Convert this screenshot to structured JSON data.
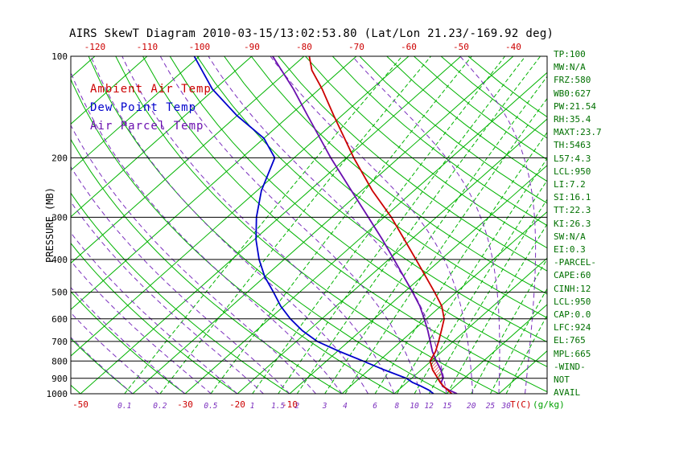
{
  "title": "AIRS SkewT Diagram 2010-03-15/13:02:53.80 (Lat/Lon 21.23/-169.92 deg)",
  "y_axis": {
    "label": "PRESSURE (MB)"
  },
  "legend": {
    "items": [
      {
        "label": "Ambient Air Temp",
        "color": "#cc0000"
      },
      {
        "label": "Dew Point Temp",
        "color": "#0000cc"
      },
      {
        "label": "Air Parcel Temp",
        "color": "#6a0faf"
      }
    ]
  },
  "stats_panel": {
    "color": "#007000",
    "lines": [
      "TP:100",
      "MW:N/A",
      "FRZ:580",
      "WB0:627",
      "PW:21.54",
      "RH:35.4",
      "MAXT:23.7",
      "TH:5463",
      "L57:4.3",
      "LCL:950",
      "LI:7.2",
      "SI:16.1",
      "TT:22.3",
      "KI:26.3",
      "SW:N/A",
      "EI:0.3",
      "-PARCEL-",
      "CAPE:60",
      "CINH:12",
      "LCL:950",
      "CAP:0.0",
      "LFC:924",
      "EL:765",
      "MPL:665",
      "-WIND-",
      "NOT",
      "AVAIL"
    ]
  },
  "chart_data": {
    "type": "line",
    "title": "AIRS SkewT Diagram 2010-03-15/13:02:53.80 (Lat/Lon 21.23/-169.92 deg)",
    "xlabel": "T(C)",
    "ylabel": "PRESSURE (MB)",
    "colors": {
      "grid_green": "#00b300",
      "moist_purple": "#7b2fbe",
      "label_red": "#cc0000",
      "pressure_black": "#000000",
      "mixing_unit_green": "#00a000"
    },
    "axes": {
      "pressure_range_mb": [
        100,
        1000
      ],
      "pressure_scale": "log",
      "pressure_ticks_mb": [
        100,
        200,
        300,
        400,
        500,
        600,
        700,
        800,
        900,
        1000
      ],
      "top_temp_labels_c": [
        -120,
        -110,
        -100,
        -90,
        -80,
        -70,
        -60,
        -50,
        -40
      ],
      "bottom_temp_labels_c": [
        -50,
        -30,
        -20,
        -10
      ],
      "mixing_ratio_labels_gkg": [
        0.1,
        0.2,
        0.5,
        1,
        1.5,
        2,
        3,
        4,
        6,
        8,
        10,
        12,
        15,
        20,
        25,
        30
      ],
      "temp_unit_label": "T(C)",
      "mixing_unit_label": "(g/kg)"
    },
    "background": {
      "isotherms_c": [
        -120,
        -110,
        -100,
        -90,
        -80,
        -70,
        -60,
        -50,
        -40,
        -30,
        -20,
        -10,
        0,
        10,
        20,
        30,
        40
      ],
      "dry_adiabats_theta_c": [
        -50,
        -40,
        -30,
        -20,
        -10,
        0,
        10,
        20,
        30,
        40,
        50,
        60,
        70,
        80,
        90,
        100,
        110,
        120,
        130,
        140,
        150,
        160
      ],
      "mixing_ratio_lines_gkg": [
        0.1,
        0.2,
        0.5,
        1,
        1.5,
        2,
        3,
        4,
        6,
        8,
        10,
        12,
        15,
        20,
        25,
        30
      ],
      "moist_adiabats_start_c": [
        -40,
        -35,
        -30,
        -25,
        -20,
        -15,
        -10,
        -5,
        0,
        5,
        10,
        15,
        20,
        25,
        30,
        35,
        40
      ]
    },
    "series": [
      {
        "name": "Ambient Air Temp",
        "color": "#cc0000",
        "points": [
          [
            1000,
            21.0
          ],
          [
            950,
            17.8
          ],
          [
            925,
            16.3
          ],
          [
            900,
            15.0
          ],
          [
            850,
            12.2
          ],
          [
            800,
            9.8
          ],
          [
            750,
            8.8
          ],
          [
            700,
            7.2
          ],
          [
            650,
            5.4
          ],
          [
            600,
            3.4
          ],
          [
            550,
            0.2
          ],
          [
            500,
            -4.2
          ],
          [
            450,
            -9.2
          ],
          [
            400,
            -14.8
          ],
          [
            350,
            -21.2
          ],
          [
            300,
            -28.6
          ],
          [
            250,
            -38.0
          ],
          [
            200,
            -48.6
          ],
          [
            150,
            -61.5
          ],
          [
            125,
            -69.5
          ],
          [
            110,
            -75.5
          ],
          [
            100,
            -79.0
          ]
        ]
      },
      {
        "name": "Dew Point Temp",
        "color": "#0000cc",
        "points": [
          [
            1000,
            17.5
          ],
          [
            975,
            15.8
          ],
          [
            950,
            13.5
          ],
          [
            925,
            11.0
          ],
          [
            900,
            9.0
          ],
          [
            850,
            3.0
          ],
          [
            800,
            -3.0
          ],
          [
            750,
            -9.5
          ],
          [
            700,
            -16.0
          ],
          [
            650,
            -21.2
          ],
          [
            600,
            -26.0
          ],
          [
            550,
            -30.6
          ],
          [
            500,
            -35.0
          ],
          [
            450,
            -40.0
          ],
          [
            400,
            -44.8
          ],
          [
            350,
            -49.6
          ],
          [
            300,
            -54.4
          ],
          [
            250,
            -59.2
          ],
          [
            200,
            -63.7
          ],
          [
            175,
            -70.0
          ],
          [
            150,
            -80.0
          ],
          [
            125,
            -90.5
          ],
          [
            100,
            -101.0
          ]
        ]
      },
      {
        "name": "Air Parcel Temp",
        "color": "#6a0faf",
        "points": [
          [
            1000,
            22.0
          ],
          [
            975,
            19.7
          ],
          [
            950,
            17.6
          ],
          [
            925,
            16.5
          ],
          [
            900,
            16.0
          ],
          [
            850,
            13.8
          ],
          [
            800,
            11.0
          ],
          [
            750,
            8.2
          ],
          [
            700,
            5.6
          ],
          [
            650,
            2.8
          ],
          [
            600,
            -0.4
          ],
          [
            550,
            -4.0
          ],
          [
            500,
            -8.4
          ],
          [
            450,
            -13.4
          ],
          [
            400,
            -19.0
          ],
          [
            350,
            -25.4
          ],
          [
            300,
            -33.0
          ],
          [
            250,
            -42.0
          ],
          [
            200,
            -53.0
          ],
          [
            150,
            -66.5
          ],
          [
            125,
            -75.0
          ],
          [
            100,
            -86.0
          ]
        ]
      }
    ],
    "cape_hatch_region": {
      "p_bottom": 918,
      "p_top": 770,
      "color": "#cc0000"
    }
  }
}
